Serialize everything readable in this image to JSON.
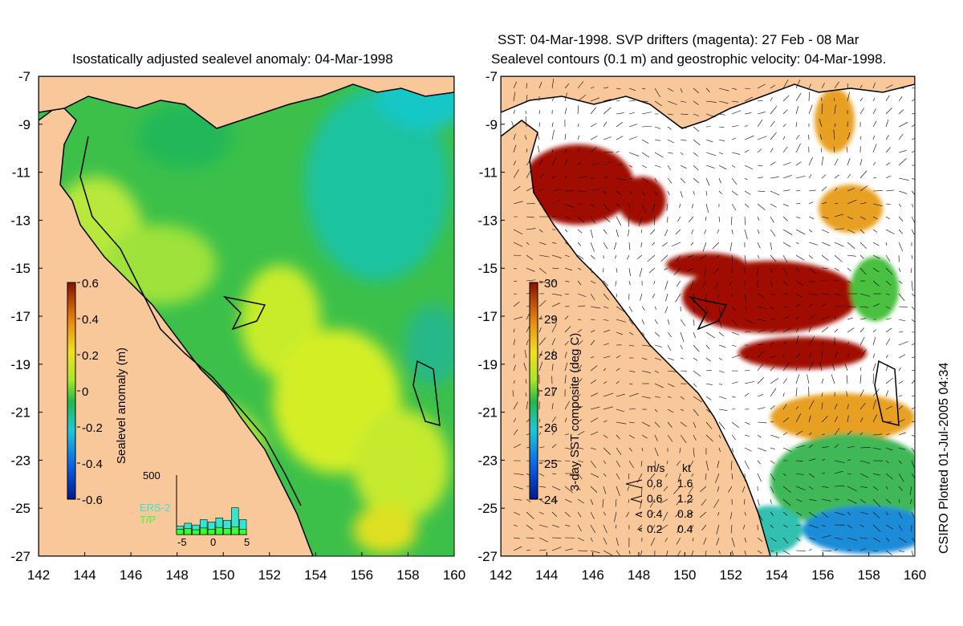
{
  "left_panel": {
    "title": "Isostatically adjusted sealevel anomaly: 04-Mar-1998",
    "colorbar": {
      "label": "Sealevel anomaly (m)",
      "ticks": [
        "0.6",
        "0.4",
        "0.2",
        "0",
        "-0.2",
        "-0.4",
        "-0.6"
      ]
    },
    "inset": {
      "ymax_label": "500",
      "xticks": [
        "-5",
        "0",
        "5"
      ],
      "legend": [
        "ERS-2",
        "T/P"
      ],
      "bars_ers2": [
        0.14,
        0.19,
        0.16,
        0.25,
        0.21,
        0.28,
        0.24,
        0.45,
        0.25
      ],
      "bars_tp": [
        0.09,
        0.1,
        0.08,
        0.11,
        0.09,
        0.12,
        0.1,
        0.13,
        0.09
      ]
    }
  },
  "right_panel": {
    "title_line1": "SST: 04-Mar-1998. SVP drifters (magenta): 27 Feb - 08 Mar",
    "title_line2": "Sealevel contours (0.1 m) and geostrophic velocity: 04-Mar-1998.",
    "colorbar": {
      "label": "3-day SST composite (deg C)",
      "ticks": [
        "30",
        "29",
        "28",
        "27",
        "26",
        "25",
        "24"
      ]
    },
    "velocity_legend": {
      "header_ms": "m/s",
      "header_kt": "kt",
      "rows": [
        {
          "ms": "0.8",
          "kt": "1.6"
        },
        {
          "ms": "0.6",
          "kt": "1.2"
        },
        {
          "ms": "0.4",
          "kt": "0.8"
        },
        {
          "ms": "0.2",
          "kt": "0.4"
        }
      ]
    }
  },
  "axes": {
    "y_ticks": [
      "-7",
      "-9",
      "-11",
      "-13",
      "-15",
      "-17",
      "-19",
      "-21",
      "-23",
      "-25",
      "-27"
    ],
    "x_ticks": [
      "142",
      "144",
      "146",
      "148",
      "150",
      "152",
      "154",
      "156",
      "158",
      "160"
    ]
  },
  "credit": "CSIRO Plotted 01-Jul-2005 04:34",
  "colors": {
    "land": "#f9c89a",
    "ocean_base": "#3cc04a",
    "high_anomaly": "#c8ec2a",
    "low_anomaly": "#19c3a4",
    "sst_warm": "#a01000",
    "sst_mid": "#e8a020",
    "cloud": "#ffffff",
    "drifter": "#ff00ff"
  }
}
